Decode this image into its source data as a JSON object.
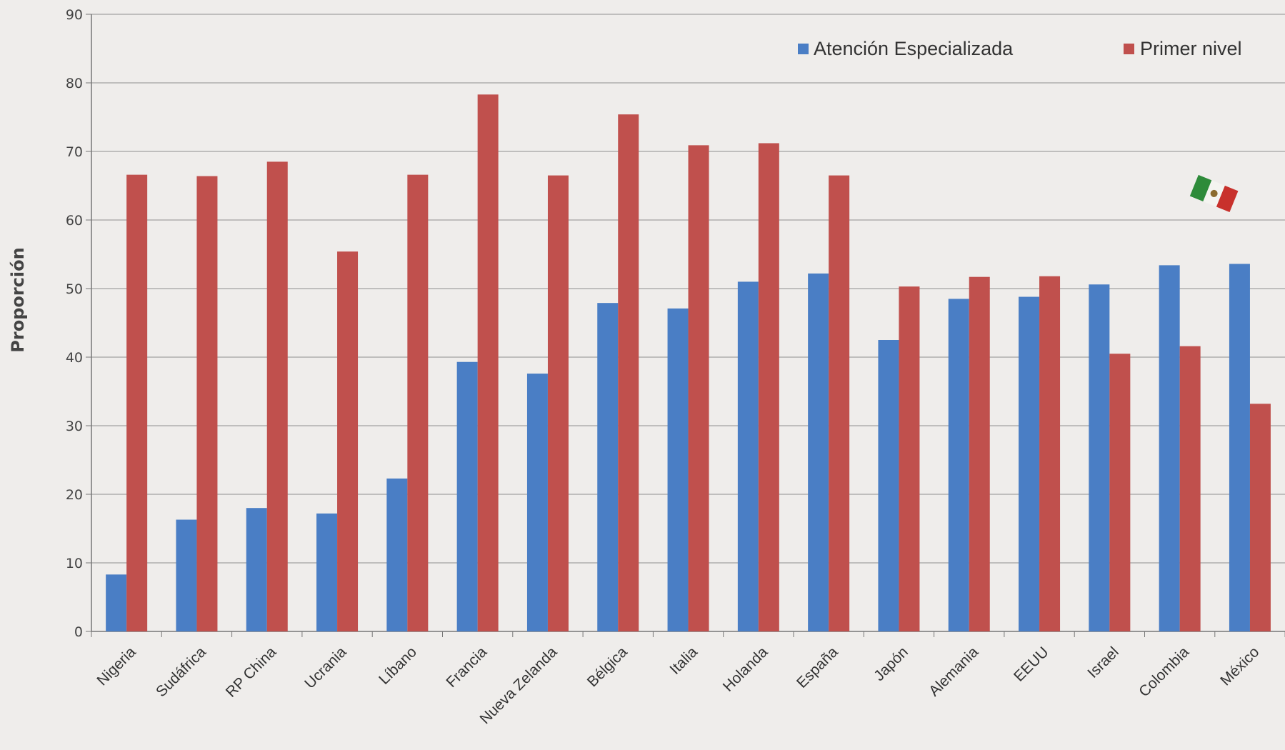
{
  "chart_data": {
    "type": "bar",
    "ylabel": "Proporción",
    "ylim": [
      0,
      90
    ],
    "yticks": [
      "0",
      "10",
      "20",
      "30",
      "40",
      "50",
      "60",
      "70",
      "80",
      "90"
    ],
    "grid": true,
    "legend_position": "top-right",
    "categories": [
      "Nigeria",
      "Sudáfrica",
      "RP China",
      "Ucrania",
      "Líbano",
      "Francia",
      "Nueva Zelanda",
      "Bélgica",
      "Italia",
      "Holanda",
      "España",
      "Japón",
      "Alemania",
      "EEUU",
      "Israel",
      "Colombia",
      "México"
    ],
    "series": [
      {
        "name": "Atención Especializada",
        "color": "#4a7ec5",
        "values": [
          8.3,
          16.3,
          18,
          17.2,
          22.3,
          39.3,
          37.6,
          47.9,
          47.1,
          51,
          52.2,
          42.5,
          48.5,
          48.8,
          50.6,
          53.4,
          53.6
        ]
      },
      {
        "name": "Primer nivel",
        "color": "#c0504d",
        "values": [
          66.6,
          66.4,
          68.5,
          55.4,
          66.6,
          78.3,
          66.5,
          75.4,
          70.9,
          71.2,
          66.5,
          50.3,
          51.7,
          51.8,
          40.5,
          41.6,
          33.2
        ]
      }
    ]
  },
  "decor": {
    "flag_icon": "mexico-flag-icon"
  }
}
